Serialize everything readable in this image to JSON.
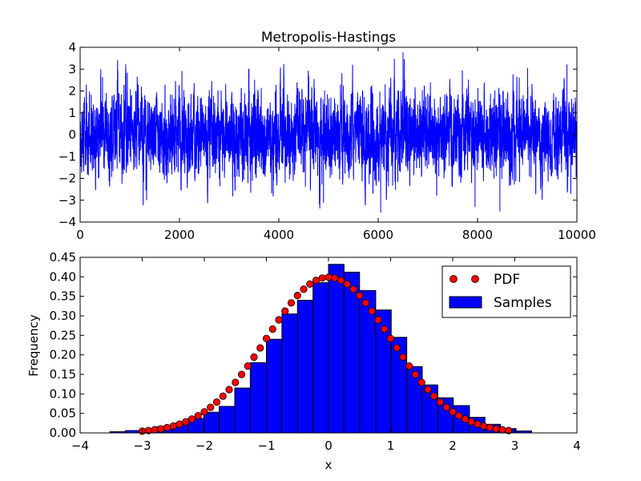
{
  "chart_data": [
    {
      "type": "line",
      "title": "Metropolis-Hastings",
      "xlabel": "",
      "ylabel": "",
      "xlim": [
        0,
        10000
      ],
      "ylim": [
        -4,
        4
      ],
      "xticks": [
        0,
        2000,
        4000,
        6000,
        8000,
        10000
      ],
      "xtick_labels": [
        "0",
        "2000",
        "4000",
        "6000",
        "8000",
        "10000"
      ],
      "yticks": [
        4,
        3,
        2,
        1,
        0,
        -1,
        -2,
        -3,
        -4
      ],
      "ytick_labels": [
        "4",
        "3",
        "2",
        "1",
        "0",
        "−1",
        "−2",
        "−3",
        "−4"
      ],
      "grid": false,
      "series": [
        {
          "color": "#0000ff",
          "n": 10000,
          "notable_points": [
            {
              "x": 6500,
              "y": 3.75
            },
            {
              "x": 6050,
              "y": -3.55
            },
            {
              "x": 8450,
              "y": -3.5
            },
            {
              "x": 7950,
              "y": -3.3
            },
            {
              "x": 4900,
              "y": -3.1
            },
            {
              "x": 9800,
              "y": 3.2
            },
            {
              "x": 2050,
              "y": 2.9
            }
          ]
        }
      ]
    },
    {
      "type": "bar",
      "title": "",
      "xlabel": "x",
      "ylabel": "Frequency",
      "xlim": [
        -4,
        4
      ],
      "ylim": [
        0,
        0.45
      ],
      "xticks": [
        -4,
        -3,
        -2,
        -1,
        0,
        1,
        2,
        3,
        4
      ],
      "xtick_labels": [
        "−4",
        "−3",
        "−2",
        "−1",
        "0",
        "1",
        "2",
        "3",
        "4"
      ],
      "yticks": [
        0.45,
        0.4,
        0.35,
        0.3,
        0.25,
        0.2,
        0.15,
        0.1,
        0.05,
        0.0
      ],
      "ytick_labels": [
        "0.45",
        "0.40",
        "0.35",
        "0.30",
        "0.25",
        "0.20",
        "0.15",
        "0.10",
        "0.05",
        "0.00"
      ],
      "grid": false,
      "legend_position": "top-right",
      "histogram": {
        "name": "Samples",
        "color": "#0000ff",
        "bin_edges": [
          -3.52,
          -3.27,
          -3.02,
          -2.76,
          -2.51,
          -2.26,
          -2.01,
          -1.76,
          -1.51,
          -1.26,
          -1.0,
          -0.75,
          -0.5,
          -0.25,
          0.0,
          0.25,
          0.5,
          0.76,
          1.01,
          1.26,
          1.51,
          1.76,
          2.01,
          2.27,
          2.52,
          2.77,
          3.02,
          3.27
        ],
        "values": [
          0.003,
          0.006,
          0.01,
          0.016,
          0.025,
          0.037,
          0.053,
          0.068,
          0.115,
          0.18,
          0.24,
          0.305,
          0.34,
          0.385,
          0.432,
          0.412,
          0.365,
          0.315,
          0.245,
          0.17,
          0.123,
          0.09,
          0.07,
          0.04,
          0.022,
          0.011,
          0.005
        ]
      },
      "pdf": {
        "name": "PDF",
        "color": "#ff0000",
        "x": [
          -3.0,
          -2.9,
          -2.8,
          -2.7,
          -2.6,
          -2.5,
          -2.4,
          -2.3,
          -2.2,
          -2.1,
          -2.0,
          -1.9,
          -1.8,
          -1.7,
          -1.6,
          -1.5,
          -1.4,
          -1.3,
          -1.2,
          -1.1,
          -1.0,
          -0.9,
          -0.8,
          -0.7,
          -0.6,
          -0.5,
          -0.4,
          -0.3,
          -0.2,
          -0.1,
          0.0,
          0.1,
          0.2,
          0.3,
          0.4,
          0.5,
          0.6,
          0.7,
          0.8,
          0.9,
          1.0,
          1.1,
          1.2,
          1.3,
          1.4,
          1.5,
          1.6,
          1.7,
          1.8,
          1.9,
          2.0,
          2.1,
          2.2,
          2.3,
          2.4,
          2.5,
          2.6,
          2.7,
          2.8,
          2.9
        ],
        "y": [
          0.0044,
          0.006,
          0.0079,
          0.0104,
          0.0136,
          0.0175,
          0.0224,
          0.0283,
          0.0355,
          0.044,
          0.054,
          0.0656,
          0.079,
          0.0941,
          0.1109,
          0.1295,
          0.1497,
          0.1714,
          0.1942,
          0.2179,
          0.242,
          0.2661,
          0.2897,
          0.3123,
          0.3332,
          0.3521,
          0.3683,
          0.3814,
          0.391,
          0.397,
          0.3989,
          0.397,
          0.391,
          0.3814,
          0.3683,
          0.3521,
          0.3332,
          0.3123,
          0.2897,
          0.2661,
          0.242,
          0.2179,
          0.1942,
          0.1714,
          0.1497,
          0.1295,
          0.1109,
          0.0941,
          0.079,
          0.0656,
          0.054,
          0.044,
          0.0355,
          0.0283,
          0.0224,
          0.0175,
          0.0136,
          0.0104,
          0.0079,
          0.006
        ]
      },
      "legend": [
        "PDF",
        "Samples"
      ]
    }
  ]
}
